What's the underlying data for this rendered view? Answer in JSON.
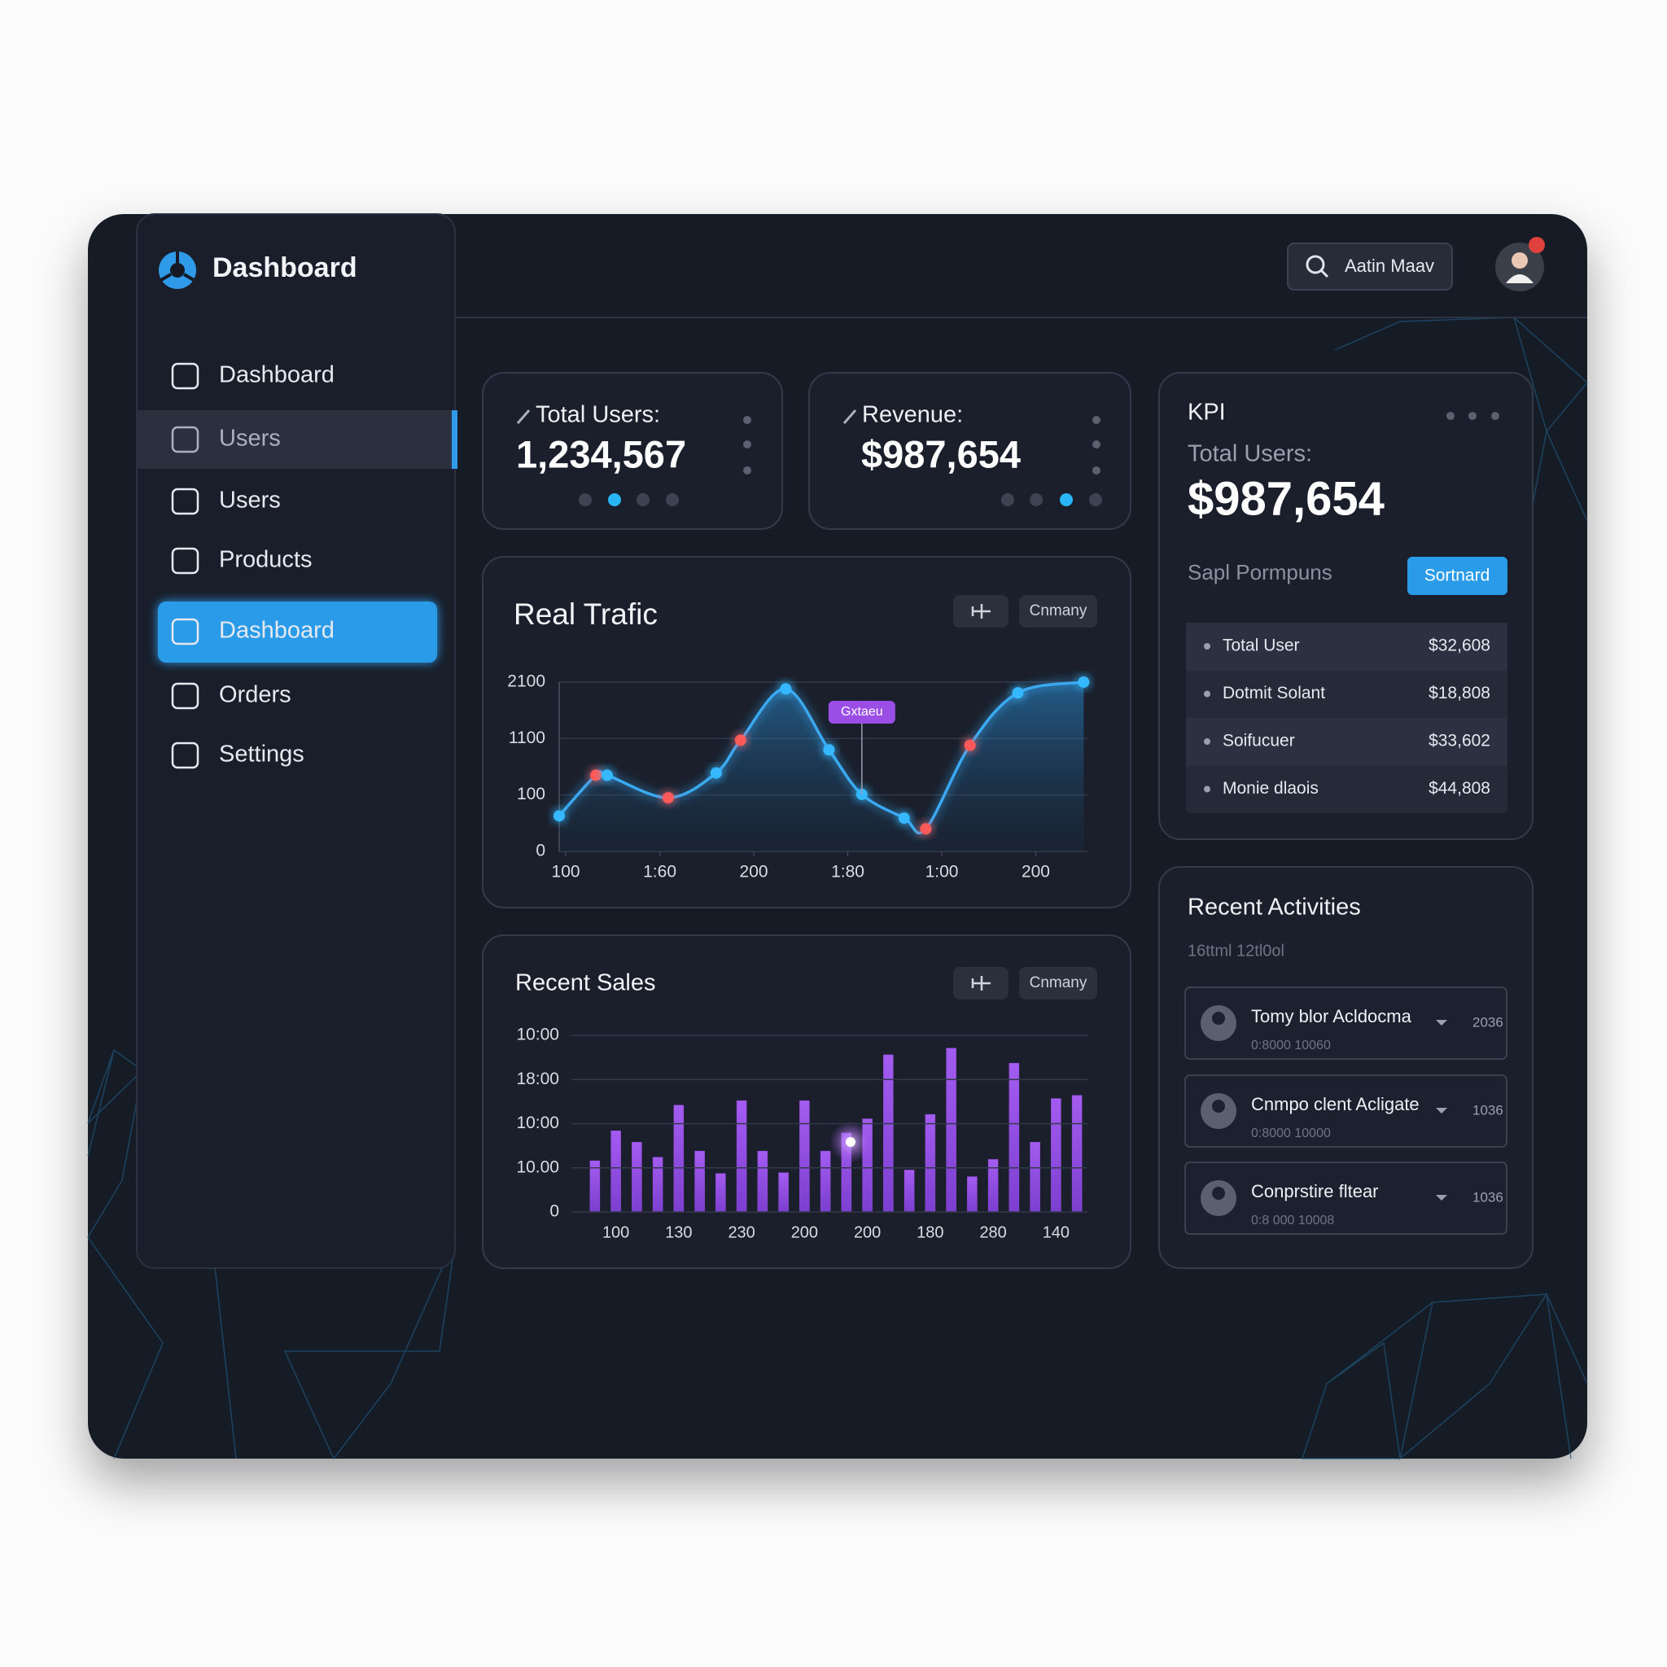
{
  "sidebar": {
    "logo": "Dashboard",
    "nav": [
      "Dashboard",
      "Users",
      "Users",
      "Products",
      "Dashboard",
      "Orders",
      "Settings"
    ],
    "hover_index": 1,
    "active_index": 4
  },
  "header": {
    "search": "Aatin Maav"
  },
  "stats": [
    {
      "label": "Total Users:",
      "value": "1,234,567",
      "active_dot": 1
    },
    {
      "label": "Revenue:",
      "value": "$987,654",
      "active_dot": 2
    }
  ],
  "kpi": {
    "title": "KPI",
    "label": "Total Users:",
    "value": "$987,654",
    "subtitle": "Sapl Pormpuns",
    "button": "Sortnard",
    "rows": [
      [
        "Total User",
        "$32,608"
      ],
      [
        "Dotmit Solant",
        "$18,808"
      ],
      [
        "Soifucuer",
        "$33,602"
      ],
      [
        "Monie dlaois",
        "$44,808"
      ]
    ]
  },
  "traffic_chart": {
    "type": "line",
    "title": "Real Trafic",
    "button": "Cnmany",
    "annotation": "Gxtaeu",
    "x": [
      -7,
      32,
      44,
      109,
      160,
      186,
      234,
      280,
      315,
      360,
      383,
      430,
      481,
      551
    ],
    "series": [
      {
        "color": "#3aa8f0",
        "values": [
          63,
          135,
          135,
          95,
          139,
          197,
          288,
          180,
          101,
          59,
          40,
          188,
          281,
          300
        ],
        "point_colors": [
          "#35b8ff",
          "#ff5a5a",
          "#35b8ff",
          "#ff5a5a",
          "#35b8ff",
          "#ff5a5a",
          "#35b8ff",
          "#35b8ff",
          "#35b8ff",
          "#35b8ff",
          "#ff5a5a",
          "#ff5a5a",
          "#35b8ff",
          "#35b8ff"
        ]
      }
    ],
    "xlim": [
      -7,
      555
    ],
    "xticks": [
      {
        "value": 0,
        "label": "100"
      },
      {
        "value": 100,
        "label": "1:60"
      },
      200,
      {
        "value": 300,
        "label": "1:80"
      },
      {
        "value": 400,
        "label": "1:00"
      },
      {
        "value": 500,
        "label": "200"
      }
    ],
    "ylim": [
      0,
      300
    ],
    "yticks": [
      0,
      100,
      {
        "value": 200,
        "label": "1100"
      },
      {
        "value": 300,
        "label": "2100"
      }
    ],
    "grid": true
  },
  "sales_chart": {
    "type": "bar",
    "title": "Recent Sales",
    "button": "Cnmany",
    "color": "#9b4ee6",
    "categories": [
      null,
      "100",
      null,
      null,
      "130",
      null,
      null,
      "230",
      null,
      null,
      "200",
      null,
      null,
      "200",
      null,
      null,
      "180",
      null,
      null,
      "280",
      null,
      null,
      "140",
      null
    ],
    "values": [
      11.6,
      18.4,
      15.8,
      12.4,
      24.2,
      13.8,
      8.7,
      25.2,
      13.8,
      8.9,
      25.2,
      13.8,
      17.9,
      21.1,
      35.6,
      9.5,
      22.1,
      37.1,
      8.0,
      11.9,
      33.7,
      15.8,
      25.7,
      26.4
    ],
    "ylim": [
      0,
      40
    ],
    "yticks": [
      0,
      {
        "value": 10,
        "label": "10.00"
      },
      {
        "value": 20,
        "label": "10:00"
      },
      {
        "value": 30,
        "label": "18:00"
      },
      {
        "value": 40,
        "label": "10:00"
      }
    ],
    "grid": true
  },
  "activities": {
    "title": "Recent Activities",
    "subtitle": "16ttml 12tl0ol",
    "items": [
      {
        "name": "Tomy blor Acldocma",
        "detail": "0:8000 10060",
        "count": "2036"
      },
      {
        "name": "Cnmpo clent Acligate",
        "detail": "0:8000 10000",
        "count": "1036"
      },
      {
        "name": "Conprstire fltear",
        "detail": "0:8 000 10008",
        "count": "1036"
      }
    ]
  }
}
